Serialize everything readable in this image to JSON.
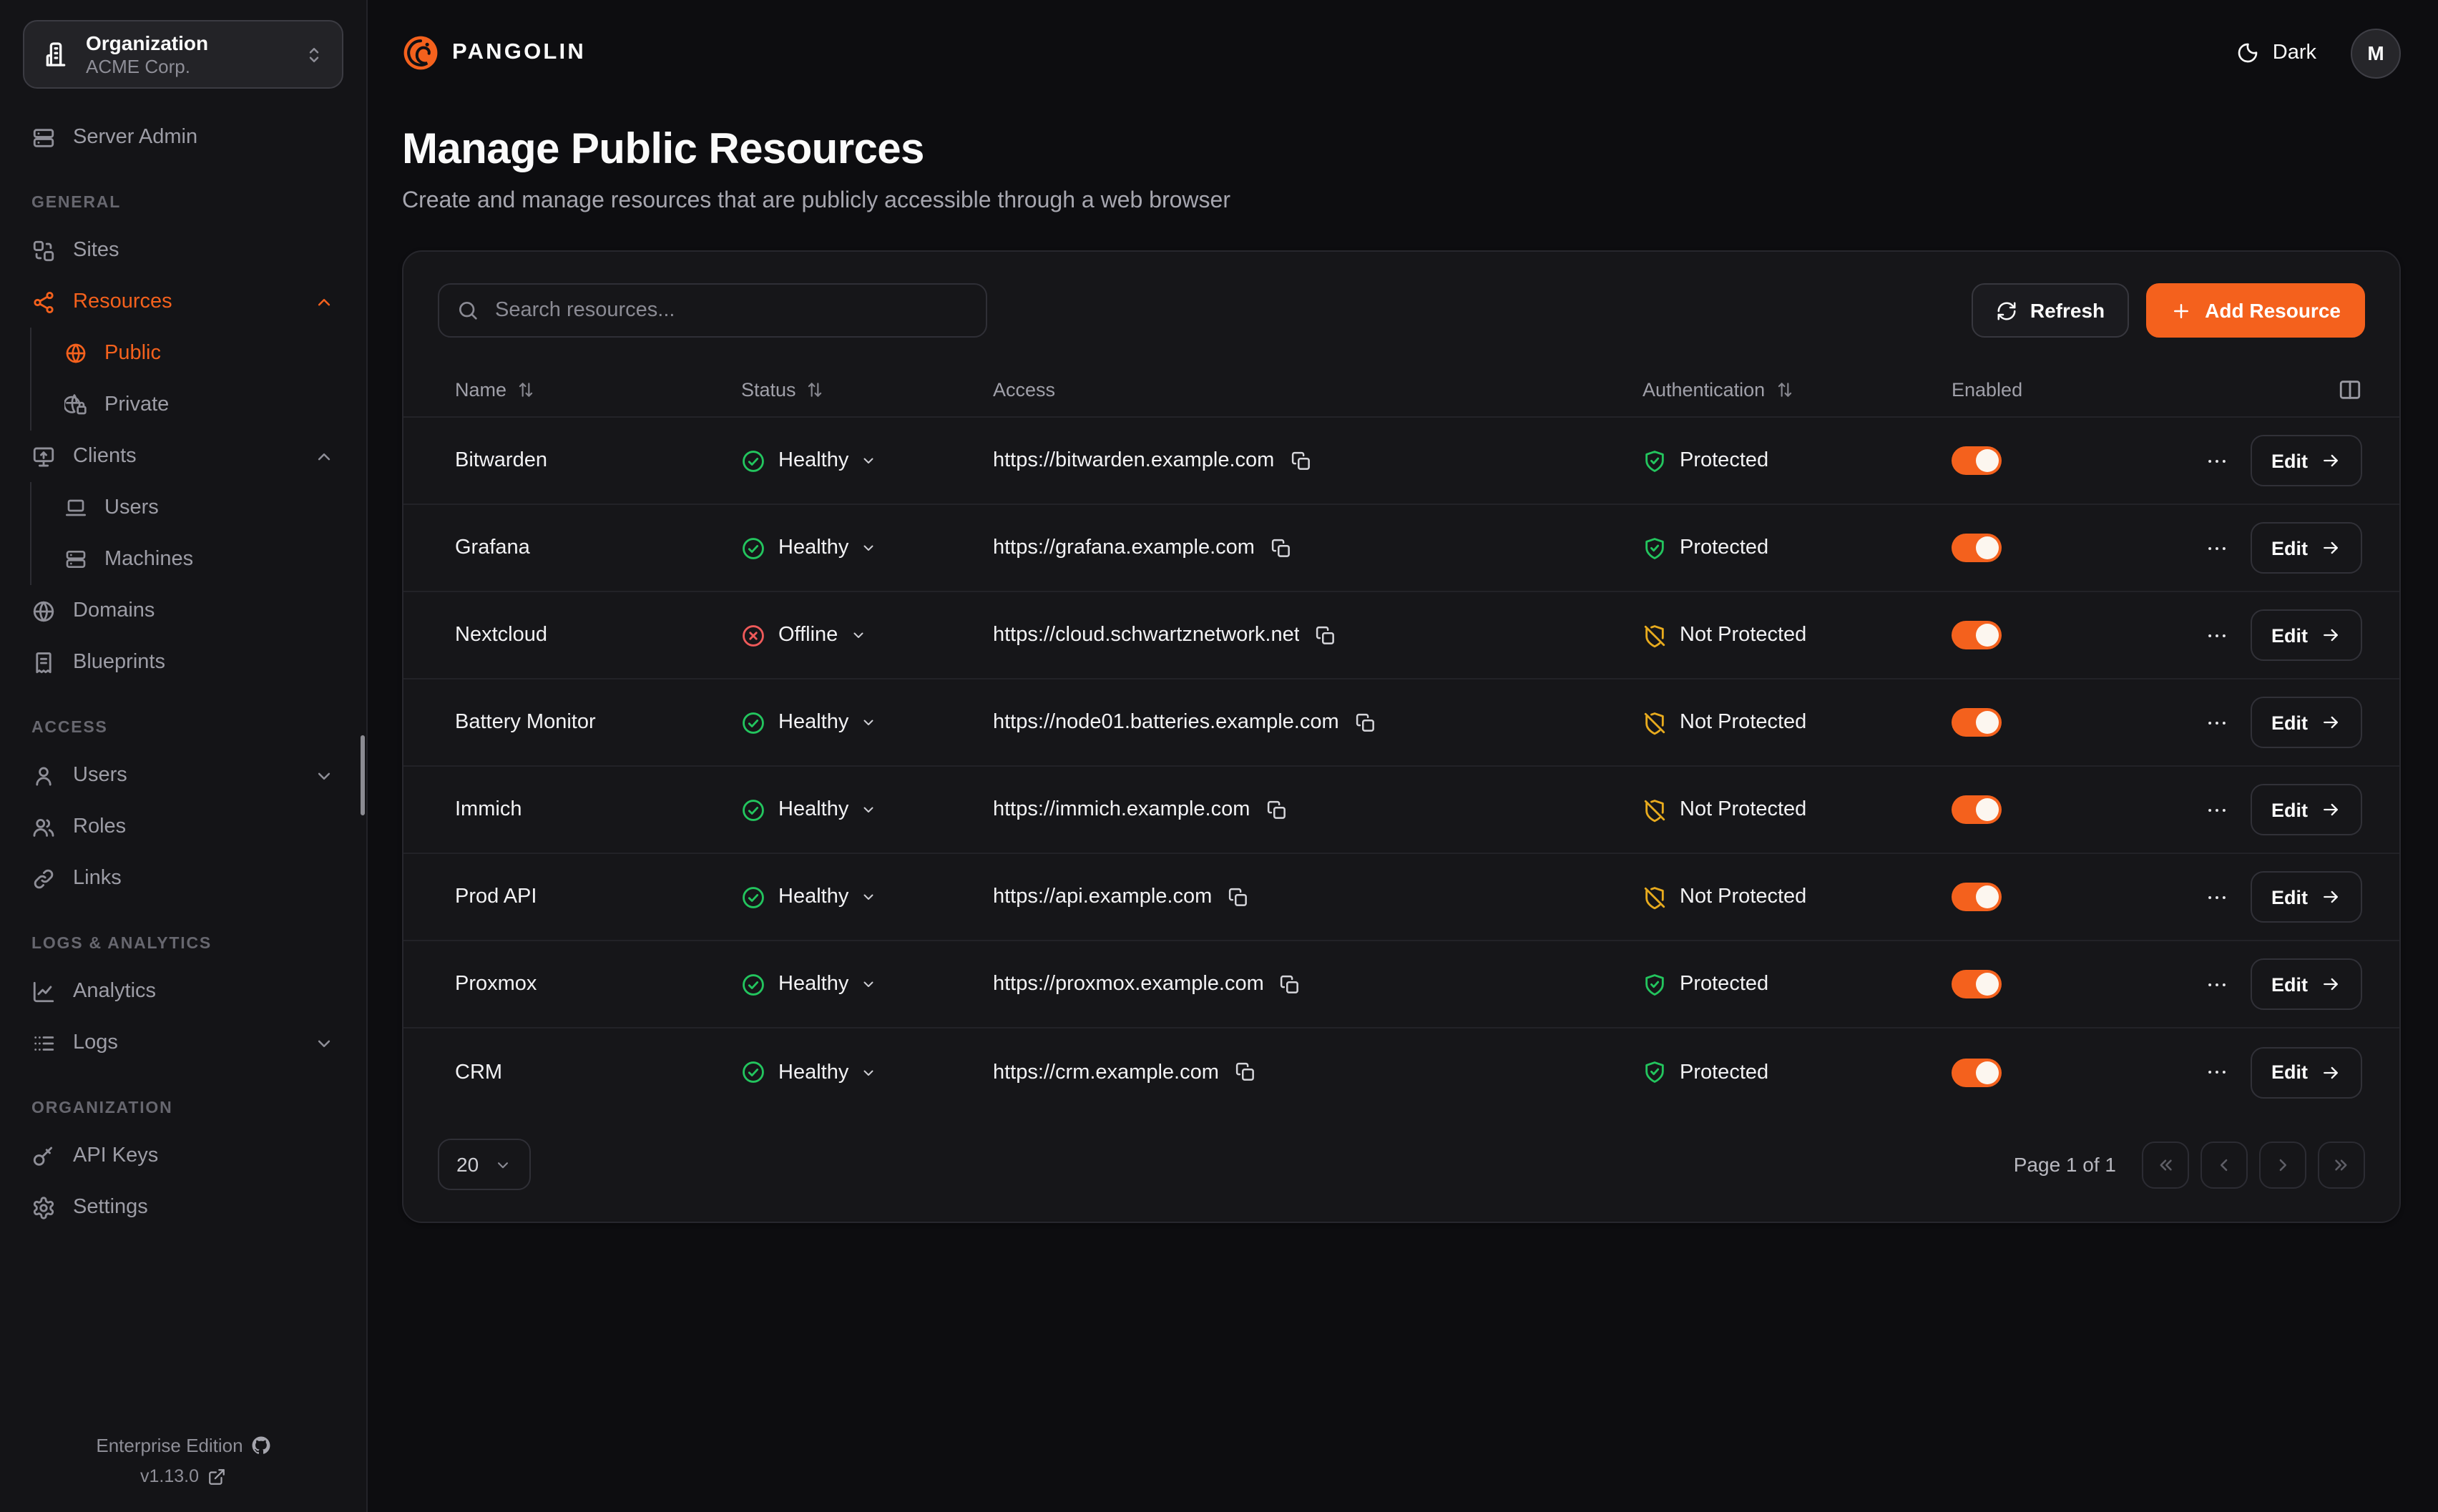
{
  "org": {
    "label": "Organization",
    "value": "ACME Corp."
  },
  "topbar": {
    "brand": "PANGOLIN",
    "theme_label": "Dark",
    "avatar_initial": "M"
  },
  "page": {
    "title": "Manage Public Resources",
    "subtitle": "Create and manage resources that are publicly accessible through a web browser"
  },
  "toolbar": {
    "search_placeholder": "Search resources...",
    "refresh_label": "Refresh",
    "add_label": "Add Resource"
  },
  "sidebar": {
    "items": [
      {
        "label": "Server Admin",
        "icon": "server"
      },
      {
        "section": "GENERAL"
      },
      {
        "label": "Sites",
        "icon": "sites"
      },
      {
        "label": "Resources",
        "icon": "waypoints",
        "active": true,
        "chevron": "up"
      },
      {
        "label": "Public",
        "icon": "globe",
        "active": true,
        "child": true
      },
      {
        "label": "Private",
        "icon": "globe-lock",
        "child": true
      },
      {
        "label": "Clients",
        "icon": "monitor-up",
        "chevron": "up"
      },
      {
        "label": "Users",
        "icon": "laptop",
        "child": true
      },
      {
        "label": "Machines",
        "icon": "server",
        "child": true
      },
      {
        "label": "Domains",
        "icon": "globe"
      },
      {
        "label": "Blueprints",
        "icon": "receipt"
      },
      {
        "section": "ACCESS"
      },
      {
        "label": "Users",
        "icon": "user",
        "chevron": "down"
      },
      {
        "label": "Roles",
        "icon": "users"
      },
      {
        "label": "Links",
        "icon": "link"
      },
      {
        "section": "LOGS & ANALYTICS"
      },
      {
        "label": "Analytics",
        "icon": "chart-line"
      },
      {
        "label": "Logs",
        "icon": "logs",
        "chevron": "down"
      },
      {
        "section": "ORGANIZATION"
      },
      {
        "label": "API Keys",
        "icon": "key"
      },
      {
        "label": "Settings",
        "icon": "settings"
      }
    ],
    "footer": {
      "edition": "Enterprise Edition",
      "version": "v1.13.0"
    }
  },
  "table": {
    "columns": [
      {
        "label": "Name",
        "sortable": true
      },
      {
        "label": "Status",
        "sortable": true
      },
      {
        "label": "Access",
        "sortable": false
      },
      {
        "label": "Authentication",
        "sortable": true
      },
      {
        "label": "Enabled",
        "sortable": false
      }
    ],
    "edit_label": "Edit",
    "rows": [
      {
        "name": "Bitwarden",
        "status": "Healthy",
        "status_kind": "healthy",
        "url": "https://bitwarden.example.com",
        "auth": "Protected",
        "auth_kind": "protected",
        "enabled": true
      },
      {
        "name": "Grafana",
        "status": "Healthy",
        "status_kind": "healthy",
        "url": "https://grafana.example.com",
        "auth": "Protected",
        "auth_kind": "protected",
        "enabled": true
      },
      {
        "name": "Nextcloud",
        "status": "Offline",
        "status_kind": "offline",
        "url": "https://cloud.schwartznetwork.net",
        "auth": "Not Protected",
        "auth_kind": "unprotected",
        "enabled": true
      },
      {
        "name": "Battery Monitor",
        "status": "Healthy",
        "status_kind": "healthy",
        "url": "https://node01.batteries.example.com",
        "auth": "Not Protected",
        "auth_kind": "unprotected",
        "enabled": true
      },
      {
        "name": "Immich",
        "status": "Healthy",
        "status_kind": "healthy",
        "url": "https://immich.example.com",
        "auth": "Not Protected",
        "auth_kind": "unprotected",
        "enabled": true
      },
      {
        "name": "Prod API",
        "status": "Healthy",
        "status_kind": "healthy",
        "url": "https://api.example.com",
        "auth": "Not Protected",
        "auth_kind": "unprotected",
        "enabled": true
      },
      {
        "name": "Proxmox",
        "status": "Healthy",
        "status_kind": "healthy",
        "url": "https://proxmox.example.com",
        "auth": "Protected",
        "auth_kind": "protected",
        "enabled": true
      },
      {
        "name": "CRM",
        "status": "Healthy",
        "status_kind": "healthy",
        "url": "https://crm.example.com",
        "auth": "Protected",
        "auth_kind": "protected",
        "enabled": true
      }
    ]
  },
  "pagination": {
    "page_size": "20",
    "label": "Page 1 of 1"
  },
  "colors": {
    "accent": "#f4611d",
    "healthy": "#23c55e",
    "offline": "#ef5a5a",
    "protected": "#23c55e",
    "unprotected": "#e8ab1e"
  }
}
